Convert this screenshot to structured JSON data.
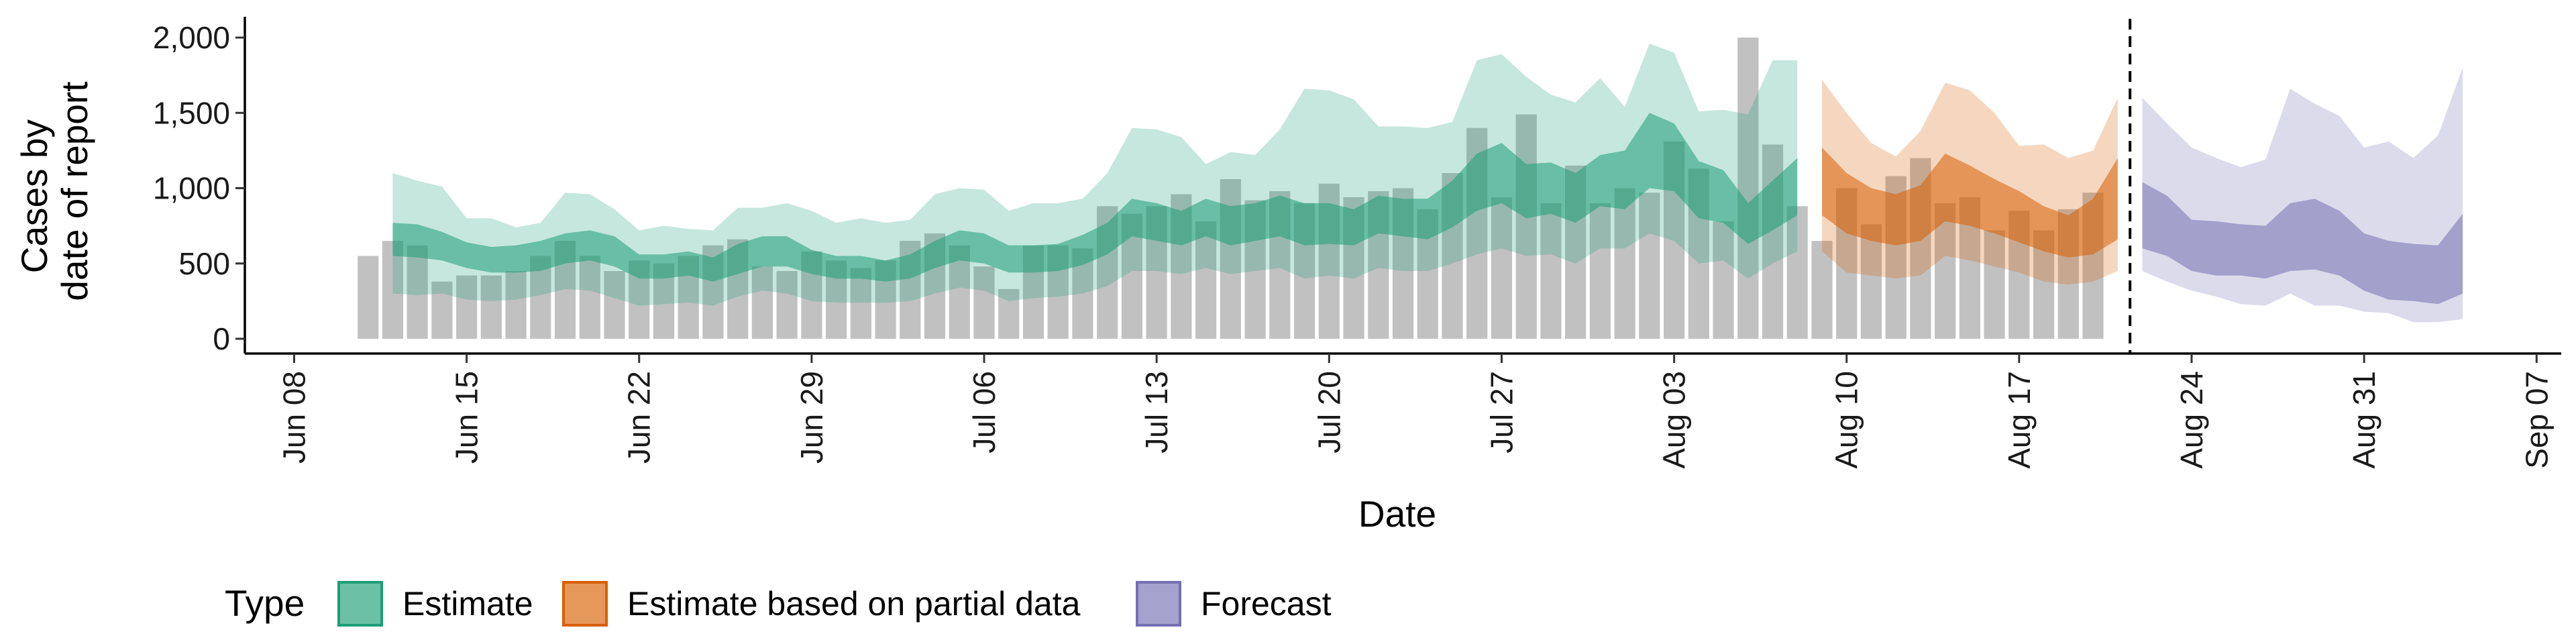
{
  "chart_data": {
    "type": "bar",
    "x_label": "Date",
    "y_label_lines": [
      "Cases by",
      "date of report"
    ],
    "y_ticks": [
      0,
      500,
      1000,
      1500,
      2000
    ],
    "y_tick_labels": [
      "0",
      "500",
      "1,000",
      "1,500",
      "2,000"
    ],
    "y_range": [
      0,
      2000
    ],
    "x_range": [
      "2020-06-06",
      "2020-09-08"
    ],
    "x_tick_dates": [
      "2020-06-08",
      "2020-06-15",
      "2020-06-22",
      "2020-06-29",
      "2020-07-06",
      "2020-07-13",
      "2020-07-20",
      "2020-07-27",
      "2020-08-03",
      "2020-08-10",
      "2020-08-17",
      "2020-08-24",
      "2020-08-31",
      "2020-09-07"
    ],
    "x_tick_labels": [
      "Jun 08",
      "Jun 15",
      "Jun 22",
      "Jun 29",
      "Jul 06",
      "Jul 13",
      "Jul 20",
      "Jul 27",
      "Aug 03",
      "Aug 10",
      "Aug 17",
      "Aug 24",
      "Aug 31",
      "Sep 07"
    ],
    "report_start_date": "2020-06-11",
    "reported_cases": [
      550,
      650,
      620,
      380,
      420,
      420,
      450,
      550,
      650,
      550,
      450,
      520,
      500,
      550,
      620,
      660,
      480,
      450,
      580,
      520,
      470,
      520,
      650,
      700,
      620,
      480,
      330,
      620,
      620,
      600,
      880,
      830,
      880,
      960,
      780,
      1060,
      920,
      980,
      900,
      1030,
      940,
      980,
      1000,
      860,
      1100,
      1400,
      940,
      1490,
      900,
      1150,
      900,
      1000,
      970,
      1310,
      1130,
      780,
      2000,
      1290,
      880,
      650,
      1000,
      760,
      1080,
      1200,
      900,
      940,
      720,
      850,
      720,
      860,
      970
    ],
    "forecast_line_date": "2020-08-21",
    "ribbon_series": [
      {
        "name": "Estimate",
        "color": "#1b9e77",
        "dates": [
          "2020-06-12",
          "2020-06-13",
          "2020-06-14",
          "2020-06-15",
          "2020-06-16",
          "2020-06-17",
          "2020-06-18",
          "2020-06-19",
          "2020-06-20",
          "2020-06-21",
          "2020-06-22",
          "2020-06-23",
          "2020-06-24",
          "2020-06-25",
          "2020-06-26",
          "2020-06-27",
          "2020-06-28",
          "2020-06-29",
          "2020-06-30",
          "2020-07-01",
          "2020-07-02",
          "2020-07-03",
          "2020-07-04",
          "2020-07-05",
          "2020-07-06",
          "2020-07-07",
          "2020-07-08",
          "2020-07-09",
          "2020-07-10",
          "2020-07-11",
          "2020-07-12",
          "2020-07-13",
          "2020-07-14",
          "2020-07-15",
          "2020-07-16",
          "2020-07-17",
          "2020-07-18",
          "2020-07-19",
          "2020-07-20",
          "2020-07-21",
          "2020-07-22",
          "2020-07-23",
          "2020-07-24",
          "2020-07-25",
          "2020-07-26",
          "2020-07-27",
          "2020-07-28",
          "2020-07-29",
          "2020-07-30",
          "2020-07-31",
          "2020-08-01",
          "2020-08-02",
          "2020-08-03",
          "2020-08-04",
          "2020-08-05",
          "2020-08-06",
          "2020-08-07",
          "2020-08-08"
        ],
        "lower_90": [
          300,
          290,
          300,
          260,
          250,
          260,
          290,
          330,
          320,
          270,
          220,
          230,
          240,
          220,
          280,
          320,
          300,
          250,
          240,
          240,
          240,
          250,
          300,
          340,
          320,
          250,
          270,
          280,
          300,
          350,
          450,
          450,
          430,
          470,
          430,
          450,
          470,
          400,
          420,
          400,
          470,
          450,
          450,
          500,
          560,
          600,
          550,
          560,
          500,
          600,
          600,
          700,
          650,
          500,
          520,
          400,
          500,
          580
        ],
        "lower_50": [
          550,
          540,
          520,
          470,
          440,
          440,
          450,
          500,
          520,
          480,
          400,
          400,
          420,
          380,
          430,
          480,
          480,
          430,
          400,
          400,
          380,
          400,
          470,
          520,
          500,
          440,
          440,
          450,
          490,
          560,
          680,
          650,
          620,
          680,
          620,
          650,
          680,
          620,
          630,
          620,
          700,
          680,
          660,
          740,
          850,
          900,
          800,
          830,
          770,
          880,
          860,
          1000,
          980,
          800,
          770,
          630,
          720,
          820
        ],
        "upper_50": [
          770,
          760,
          710,
          640,
          610,
          620,
          650,
          700,
          720,
          680,
          560,
          560,
          580,
          540,
          630,
          680,
          680,
          590,
          550,
          550,
          520,
          560,
          650,
          720,
          700,
          620,
          620,
          630,
          690,
          770,
          930,
          900,
          850,
          930,
          880,
          900,
          950,
          900,
          900,
          860,
          950,
          930,
          930,
          1050,
          1230,
          1300,
          1160,
          1170,
          1100,
          1220,
          1250,
          1500,
          1430,
          1180,
          1120,
          900,
          1050,
          1200
        ],
        "upper_90": [
          1100,
          1050,
          1010,
          800,
          800,
          740,
          770,
          970,
          960,
          860,
          720,
          750,
          730,
          720,
          870,
          870,
          900,
          850,
          770,
          800,
          770,
          790,
          960,
          1000,
          990,
          850,
          900,
          900,
          930,
          1100,
          1400,
          1390,
          1340,
          1160,
          1240,
          1220,
          1390,
          1660,
          1650,
          1590,
          1410,
          1410,
          1400,
          1440,
          1850,
          1890,
          1740,
          1620,
          1570,
          1730,
          1540,
          1960,
          1900,
          1510,
          1520,
          1490,
          1850,
          1850
        ]
      },
      {
        "name": "Estimate based on partial data",
        "color": "#d95f02",
        "dates": [
          "2020-08-09",
          "2020-08-10",
          "2020-08-11",
          "2020-08-12",
          "2020-08-13",
          "2020-08-14",
          "2020-08-15",
          "2020-08-16",
          "2020-08-17",
          "2020-08-18",
          "2020-08-19",
          "2020-08-20",
          "2020-08-21"
        ],
        "lower_90": [
          580,
          440,
          420,
          400,
          420,
          550,
          520,
          480,
          440,
          380,
          360,
          380,
          450
        ],
        "lower_50": [
          820,
          700,
          650,
          620,
          650,
          780,
          750,
          700,
          640,
          580,
          540,
          560,
          660
        ],
        "upper_50": [
          1270,
          1100,
          1000,
          960,
          1020,
          1230,
          1150,
          1060,
          980,
          880,
          820,
          930,
          1200
        ],
        "upper_90": [
          1720,
          1500,
          1300,
          1210,
          1380,
          1700,
          1650,
          1500,
          1280,
          1290,
          1200,
          1250,
          1600
        ]
      },
      {
        "name": "Forecast",
        "color": "#7570b3",
        "dates": [
          "2020-08-22",
          "2020-08-23",
          "2020-08-24",
          "2020-08-25",
          "2020-08-26",
          "2020-08-27",
          "2020-08-28",
          "2020-08-29",
          "2020-08-30",
          "2020-08-31",
          "2020-09-01",
          "2020-09-02",
          "2020-09-03",
          "2020-09-04"
        ],
        "lower_90": [
          450,
          380,
          320,
          280,
          230,
          220,
          300,
          220,
          220,
          180,
          170,
          110,
          110,
          130
        ],
        "lower_50": [
          600,
          550,
          450,
          420,
          420,
          400,
          450,
          460,
          420,
          320,
          260,
          250,
          230,
          300
        ],
        "upper_50": [
          1040,
          950,
          790,
          780,
          760,
          750,
          900,
          930,
          850,
          700,
          650,
          630,
          620,
          830
        ],
        "upper_90": [
          1600,
          1430,
          1270,
          1200,
          1140,
          1190,
          1660,
          1560,
          1480,
          1270,
          1310,
          1200,
          1350,
          1800
        ]
      }
    ],
    "legend": {
      "title": "Type",
      "items": [
        {
          "label": "Estimate",
          "fill": "#1b9e77"
        },
        {
          "label": "Estimate based on partial data",
          "fill": "#d95f02"
        },
        {
          "label": "Forecast",
          "fill": "#7570b3"
        }
      ]
    }
  }
}
